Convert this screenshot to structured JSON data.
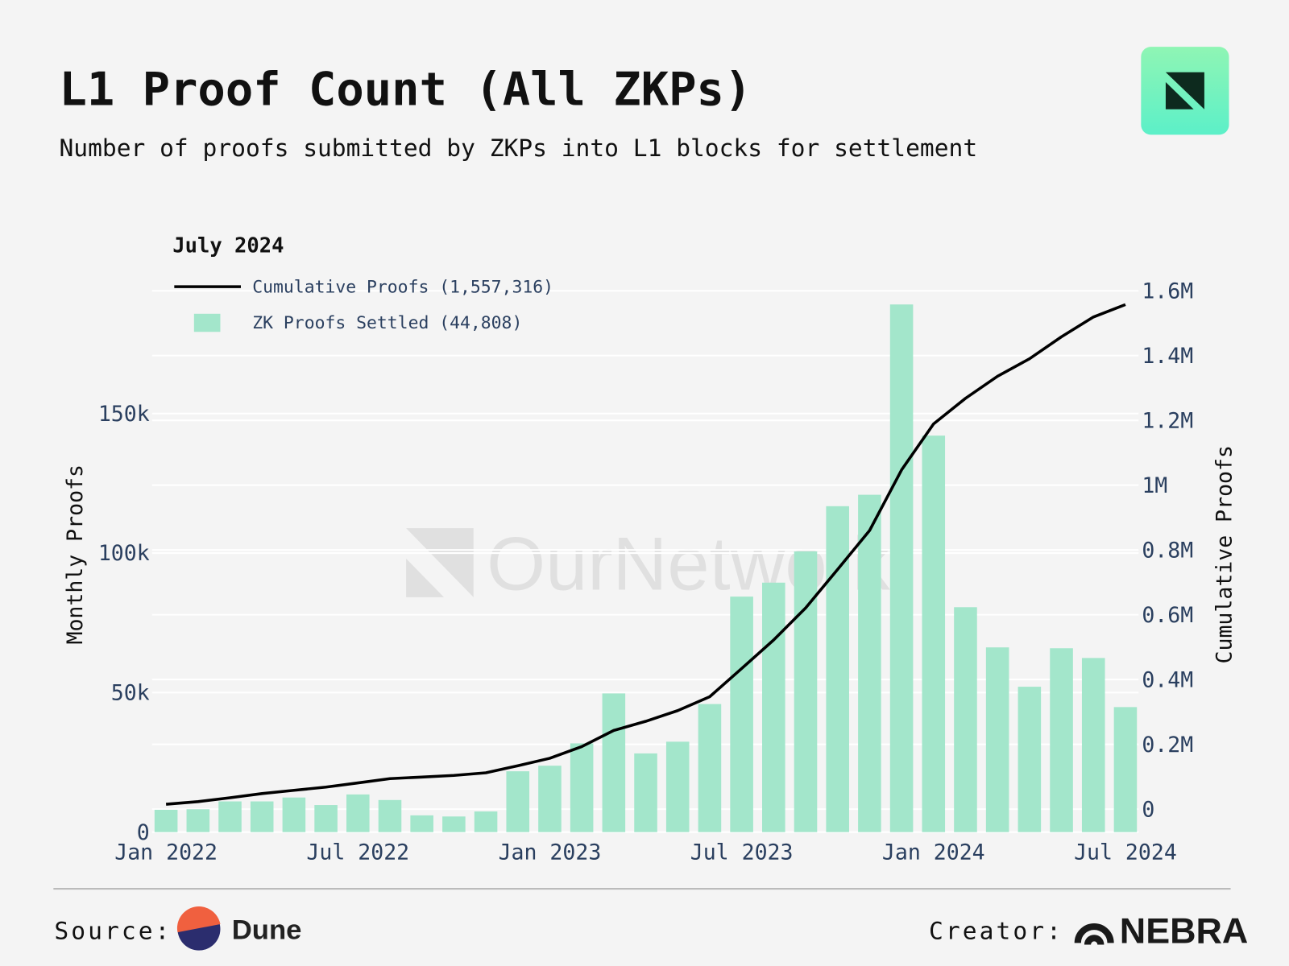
{
  "chart_data": {
    "type": "bar",
    "title": "L1 Proof Count (All ZKPs)",
    "subtitle": "Number of proofs submitted by ZKPs into L1 blocks for settlement",
    "ylabel": "Monthly Proofs",
    "y2label": "Cumulative Proofs",
    "legend_title": "July 2024",
    "watermark": "OurNetwork",
    "grid": true,
    "categories": [
      "Jan 2022",
      "Feb 2022",
      "Mar 2022",
      "Apr 2022",
      "May 2022",
      "Jun 2022",
      "Jul 2022",
      "Aug 2022",
      "Sep 2022",
      "Oct 2022",
      "Nov 2022",
      "Dec 2022",
      "Jan 2023",
      "Feb 2023",
      "Mar 2023",
      "Apr 2023",
      "May 2023",
      "Jun 2023",
      "Jul 2023",
      "Aug 2023",
      "Sep 2023",
      "Oct 2023",
      "Nov 2023",
      "Dec 2023",
      "Jan 2024",
      "Feb 2024",
      "Mar 2024",
      "Apr 2024",
      "May 2024",
      "Jun 2024",
      "Jul 2024"
    ],
    "xticks": [
      "Jan 2022",
      "Jul 2022",
      "Jan 2023",
      "Jul 2023",
      "Jan 2024",
      "Jul 2024"
    ],
    "series": [
      {
        "name": "Cumulative Proofs (1,557,316)",
        "type": "line",
        "axis": "y2",
        "color": "#000000",
        "values": [
          15000,
          23000,
          35000,
          48000,
          58000,
          68000,
          81000,
          94000,
          99000,
          104000,
          112000,
          134000,
          157000,
          193000,
          243000,
          271000,
          304000,
          347000,
          434000,
          522000,
          621000,
          740000,
          860000,
          1047000,
          1189000,
          1268000,
          1336000,
          1390000,
          1458000,
          1519000,
          1557316
        ]
      },
      {
        "name": "ZK Proofs Settled (44,808)",
        "type": "bar",
        "color": "#a3e6cb",
        "values": [
          8000,
          8200,
          11000,
          11000,
          12400,
          9700,
          13500,
          11500,
          6000,
          5600,
          7400,
          21800,
          23800,
          31800,
          49700,
          28200,
          32400,
          45900,
          84400,
          89400,
          100600,
          116800,
          120900,
          189100,
          142100,
          80600,
          66200,
          52100,
          65900,
          62400,
          44808
        ]
      }
    ],
    "ylim": [
      0,
      194000
    ],
    "yticks": [
      0,
      {
        "value": 50000,
        "label": "50k"
      },
      {
        "value": 100000,
        "label": "100k"
      },
      {
        "value": 150000,
        "label": "150k"
      }
    ],
    "y2lim": [
      -71000,
      1600000
    ],
    "y2ticks": [
      0,
      {
        "value": 200000,
        "label": "0.2M"
      },
      {
        "value": 400000,
        "label": "0.4M"
      },
      {
        "value": 600000,
        "label": "0.6M"
      },
      {
        "value": 800000,
        "label": "0.8M"
      },
      {
        "value": 1000000,
        "label": "1M"
      },
      {
        "value": 1200000,
        "label": "1.2M"
      },
      {
        "value": 1400000,
        "label": "1.4M"
      },
      {
        "value": 1600000,
        "label": "1.6M"
      }
    ]
  },
  "footer": {
    "source_label": "Source:",
    "source": "Dune",
    "creator_label": "Creator:",
    "creator": "NEBRA"
  }
}
